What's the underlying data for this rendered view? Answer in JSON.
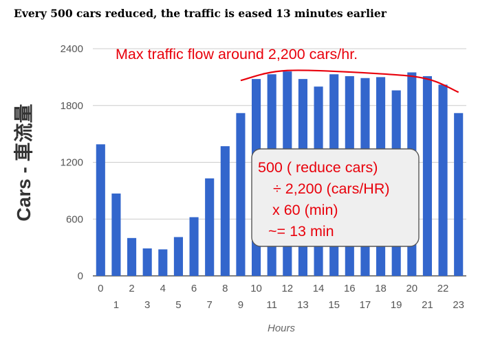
{
  "chart_data": {
    "type": "bar",
    "title": "Every 500 cars reduced, the traffic is eased 13 minutes earlier",
    "xlabel": "Hours",
    "ylabel": "Cars - 車流量",
    "categories": [
      "0",
      "1",
      "2",
      "3",
      "4",
      "5",
      "6",
      "7",
      "8",
      "9",
      "10",
      "11",
      "12",
      "13",
      "14",
      "15",
      "16",
      "17",
      "18",
      "19",
      "20",
      "21",
      "22",
      "23"
    ],
    "values": [
      1390,
      870,
      400,
      290,
      280,
      410,
      620,
      1030,
      1370,
      1720,
      2080,
      2130,
      2160,
      2080,
      2000,
      2130,
      2110,
      2090,
      2100,
      1960,
      2150,
      2110,
      2020,
      1720
    ],
    "ylim": [
      0,
      2400
    ],
    "yticks": [
      0,
      600,
      1200,
      1800,
      2400
    ],
    "grid": true,
    "bar_color": "#3366cc",
    "annotation_color": "#e8000b",
    "annotation_top": "Max traffic flow around 2,200 cars/hr.",
    "annotation_box": [
      "500  ( reduce cars)",
      "÷ 2,200 (cars/HR)",
      "x 60 (min)",
      "~= 13 min"
    ],
    "trend_curve": [
      {
        "x": 9,
        "y": 2065
      },
      {
        "x": 12,
        "y": 2170
      },
      {
        "x": 18,
        "y": 2135
      },
      {
        "x": 21,
        "y": 2080
      },
      {
        "x": 23,
        "y": 1940
      }
    ]
  }
}
